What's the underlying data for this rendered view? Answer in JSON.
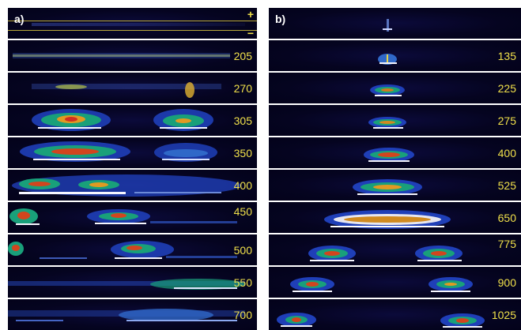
{
  "panels": [
    {
      "id": "a",
      "letter": "a)",
      "polarity_top": "+",
      "polarity_bottom": "−",
      "labels": [
        "205",
        "270",
        "305",
        "350",
        "400",
        "450",
        "500",
        "550",
        "700"
      ]
    },
    {
      "id": "b",
      "letter": "b)",
      "labels": [
        "135",
        "225",
        "275",
        "400",
        "525",
        "650",
        "775",
        "900",
        "1025"
      ]
    }
  ],
  "colors": {
    "background": "#050420",
    "label": "#f0e04a",
    "line": "#d8c640"
  }
}
